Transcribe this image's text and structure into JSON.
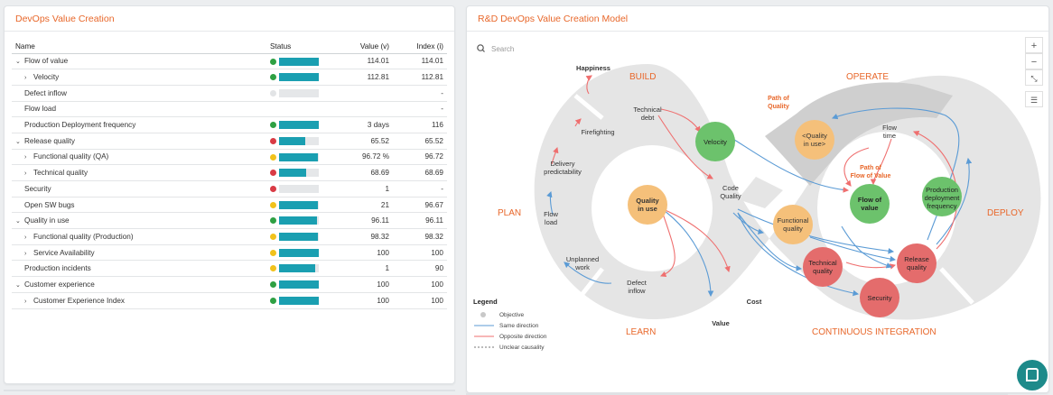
{
  "left_panel": {
    "title": "DevOps Value Creation",
    "columns": {
      "name": "Name",
      "status": "Status",
      "value": "Value (v)",
      "index": "Index (i)"
    },
    "rows": [
      {
        "name": "Flow of value",
        "caret": "⌄",
        "level": 1,
        "dot": "#2ea043",
        "fill": 1.0,
        "value": "114.01",
        "index": "114.01"
      },
      {
        "name": "Velocity",
        "caret": "›",
        "level": 2,
        "dot": "#2ea043",
        "fill": 1.0,
        "value": "112.81",
        "index": "112.81"
      },
      {
        "name": "Defect inflow",
        "caret": "",
        "level": 3,
        "dot": "#e2e4e6",
        "fill": 0,
        "value": "",
        "index": "-"
      },
      {
        "name": "Flow load",
        "caret": "",
        "level": 3,
        "dot": "",
        "fill": null,
        "value": "",
        "index": "-"
      },
      {
        "name": "Production Deployment frequency",
        "caret": "",
        "level": 3,
        "dot": "#2ea043",
        "fill": 1.0,
        "value": "3 days",
        "index": "116"
      },
      {
        "name": "Release quality",
        "caret": "⌄",
        "level": 1,
        "dot": "#d93b45",
        "fill": 0.66,
        "value": "65.52",
        "index": "65.52"
      },
      {
        "name": "Functional quality (QA)",
        "caret": "›",
        "level": 2,
        "dot": "#f1c21b",
        "fill": 0.97,
        "value": "96.72 %",
        "index": "96.72"
      },
      {
        "name": "Technical quality",
        "caret": "›",
        "level": 2,
        "dot": "#d93b45",
        "fill": 0.69,
        "value": "68.69",
        "index": "68.69"
      },
      {
        "name": "Security",
        "caret": "",
        "level": 3,
        "dot": "#d93b45",
        "fill": 0,
        "value": "1",
        "index": "-"
      },
      {
        "name": "Open SW bugs",
        "caret": "",
        "level": 3,
        "dot": "#f1c21b",
        "fill": 0.97,
        "value": "21",
        "index": "96.67"
      },
      {
        "name": "Quality in use",
        "caret": "⌄",
        "level": 1,
        "dot": "#2ea043",
        "fill": 0.96,
        "value": "96.11",
        "index": "96.11"
      },
      {
        "name": "Functional quality (Production)",
        "caret": "›",
        "level": 2,
        "dot": "#f1c21b",
        "fill": 0.98,
        "value": "98.32",
        "index": "98.32"
      },
      {
        "name": "Service Availability",
        "caret": "›",
        "level": 2,
        "dot": "#f1c21b",
        "fill": 1.0,
        "value": "100",
        "index": "100"
      },
      {
        "name": "Production incidents",
        "caret": "",
        "level": 3,
        "dot": "#f1c21b",
        "fill": 0.9,
        "value": "1",
        "index": "90"
      },
      {
        "name": "Customer experience",
        "caret": "⌄",
        "level": 1,
        "dot": "#2ea043",
        "fill": 1.0,
        "value": "100",
        "index": "100"
      },
      {
        "name": "Customer Experience Index",
        "caret": "›",
        "level": 2,
        "dot": "#2ea043",
        "fill": 1.0,
        "value": "100",
        "index": "100"
      }
    ]
  },
  "right_panel": {
    "title": "R&D DevOps Value Creation Model",
    "search_placeholder": "Search",
    "map_icons": [
      "plus-icon",
      "minus-icon",
      "collapse-icon",
      "filter-icon"
    ],
    "phases": {
      "build": "BUILD",
      "operate": "OPERATE",
      "plan": "PLAN",
      "deploy": "DEPLOY",
      "learn": "LEARN",
      "ci": "CONTINUOUS INTEGRATION"
    },
    "labels": {
      "happiness": "Happiness",
      "technical_debt_1": "Technical",
      "technical_debt_2": "debt",
      "firefighting": "Firefighting",
      "delivery_1": "Delivery",
      "delivery_2": "predictability",
      "flow_load_1": "Flow",
      "flow_load_2": "load",
      "unplanned_1": "Unplanned",
      "unplanned_2": "work",
      "defect_1": "Defect",
      "defect_2": "inflow",
      "code_1": "Code",
      "code_2": "Quality",
      "cost": "Cost",
      "value": "Value",
      "flow_time_1": "Flow",
      "flow_time_2": "time",
      "path_quality_1": "Path of",
      "path_quality_2": "Quality",
      "path_flow_1": "Path of",
      "path_flow_2": "Flow of Value"
    },
    "nodes": {
      "velocity": "Velocity",
      "quality_in_use_1": "Quality",
      "quality_in_use_2": "in use",
      "quality_in_use_ref_1": "<Quality",
      "quality_in_use_ref_2": "in use>",
      "flow_of_value_1": "Flow of",
      "flow_of_value_2": "value",
      "production_1": "Production",
      "production_2": "deployment",
      "production_3": "frequency",
      "functional_1": "Functional",
      "functional_2": "quality",
      "technical_1": "Technical",
      "technical_2": "quality",
      "release_1": "Release",
      "release_2": "quality",
      "security": "Security"
    },
    "legend": {
      "title": "Legend",
      "objective": "Objective",
      "same": "Same direction",
      "opposite": "Opposite direction",
      "unclear": "Unclear causality"
    },
    "colors": {
      "accent": "#e8672a",
      "green": "#6cc26c",
      "orange": "#f5c07a",
      "red": "#e46c6c",
      "blue_arrow": "#5b9bd5",
      "red_arrow": "#ef6f6f"
    }
  }
}
